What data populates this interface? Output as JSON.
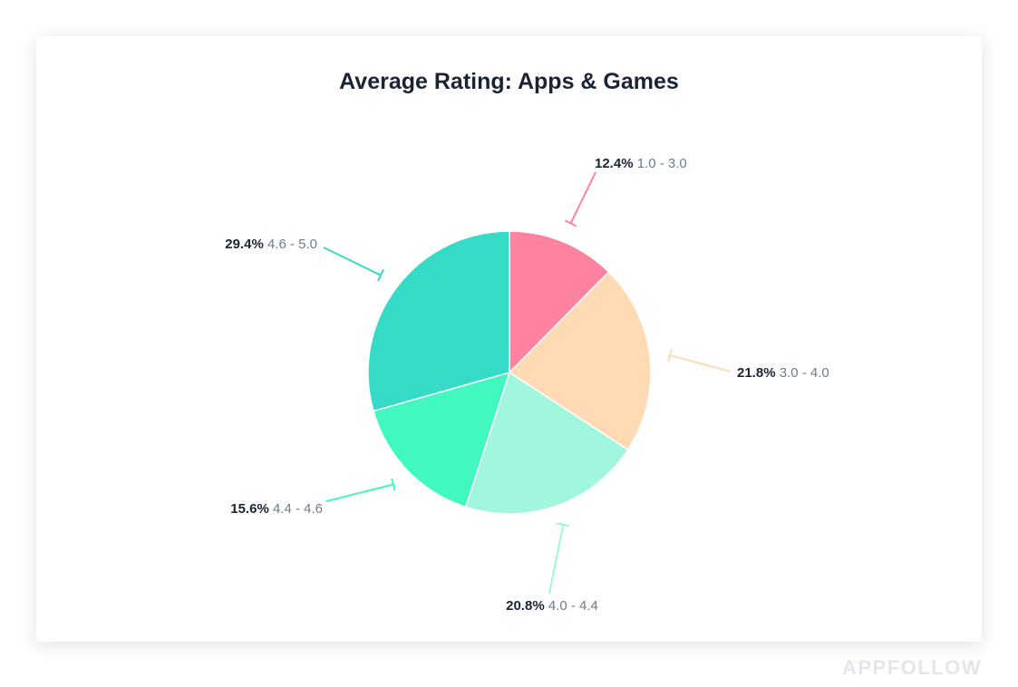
{
  "chart_data": {
    "type": "pie",
    "title": "Average Rating: Apps & Games",
    "slices": [
      {
        "percent_label": "12.4%",
        "range_label": "1.0 - 3.0",
        "value": 12.4,
        "color": "#ff829e"
      },
      {
        "percent_label": "21.8%",
        "range_label": "3.0 - 4.0",
        "value": 21.8,
        "color": "#ffdbb5"
      },
      {
        "percent_label": "20.8%",
        "range_label": "4.0 - 4.4",
        "value": 20.8,
        "color": "#a0f7dd"
      },
      {
        "percent_label": "15.6%",
        "range_label": "4.4 - 4.6",
        "value": 15.6,
        "color": "#40f8c0"
      },
      {
        "percent_label": "29.4%",
        "range_label": "4.6 - 5.0",
        "value": 29.4,
        "color": "#36dbc8"
      }
    ]
  },
  "brand": "APPFOLLOW"
}
